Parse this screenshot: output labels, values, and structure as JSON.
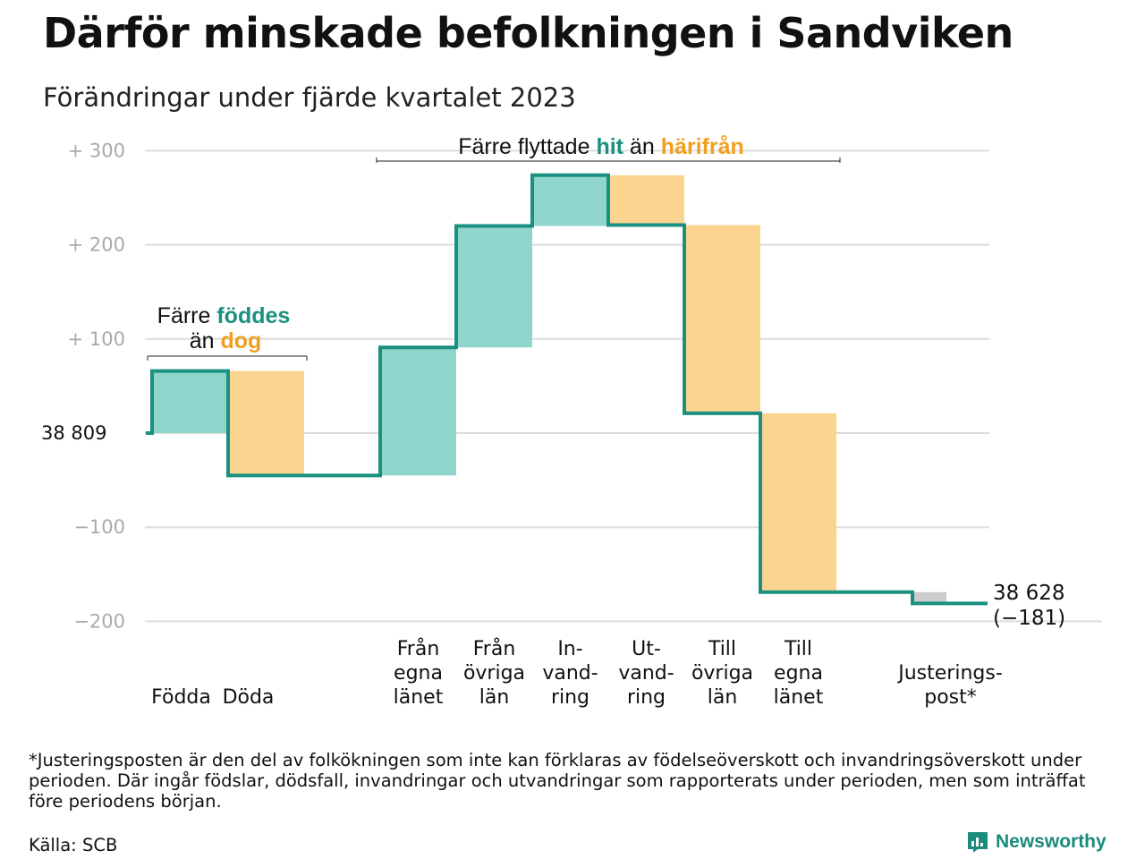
{
  "title": "Därför minskade befolkningen i Sandviken",
  "subtitle": "Förändringar under fjärde kvartalet 2023",
  "chart_data": {
    "type": "waterfall",
    "baseline_label": "38  809",
    "end_label_line1": "38 628",
    "end_label_line2": "(−181)",
    "ylim": [
      -200,
      300
    ],
    "yticks": [
      {
        "value": 300,
        "label": "+  300"
      },
      {
        "value": 200,
        "label": "+  200"
      },
      {
        "value": 100,
        "label": "+  100"
      },
      {
        "value": 0,
        "label": ""
      },
      {
        "value": -100,
        "label": "−100"
      },
      {
        "value": -200,
        "label": "−200"
      }
    ],
    "steps": [
      {
        "label": [
          "Födda"
        ],
        "from": 0,
        "to": 66,
        "kind": "in"
      },
      {
        "label": [
          "Döda"
        ],
        "from": 66,
        "to": -45,
        "kind": "out"
      },
      {
        "label": [
          "Från",
          "egna",
          "länet"
        ],
        "from": -45,
        "to": 91,
        "kind": "in"
      },
      {
        "label": [
          "Från",
          "övriga",
          "län"
        ],
        "from": 91,
        "to": 220,
        "kind": "in"
      },
      {
        "label": [
          "In-",
          "vand-",
          "ring"
        ],
        "from": 220,
        "to": 274,
        "kind": "in"
      },
      {
        "label": [
          "Ut-",
          "vand-",
          "ring"
        ],
        "from": 274,
        "to": 221,
        "kind": "out"
      },
      {
        "label": [
          "Till",
          "övriga",
          "län"
        ],
        "from": 221,
        "to": 21,
        "kind": "out"
      },
      {
        "label": [
          "Till",
          "egna",
          "länet"
        ],
        "from": 21,
        "to": -169,
        "kind": "out"
      },
      {
        "label": [
          "Justerings-",
          "post*"
        ],
        "from": -169,
        "to": -181,
        "kind": "adjust"
      }
    ],
    "annotations": {
      "births": {
        "line1_prefix": "Färre ",
        "line1_emph": "föddes",
        "line2_prefix": "än ",
        "line2_emph": "dog"
      },
      "moves": {
        "prefix": "Färre flyttade ",
        "emph1": "hit",
        "middle": " än ",
        "emph2": "härifrån"
      }
    },
    "colors": {
      "in": "#8fd5cc",
      "out": "#fbd590",
      "adjust": "#cccccc",
      "line": "#1a9080",
      "teal_text": "#1a9080",
      "orange_text": "#f0a020",
      "grid": "#dddddd",
      "tick_text": "#aaaaaa"
    }
  },
  "footnote": "*Justeringsposten är den del av folkökningen som inte kan förklaras av födelseöverskott och invandringsöverskott under perioden. Där ingår födslar, dödsfall, invandringar och utvandringar som rapporterats under perioden, men som inträffat före periodens början.",
  "source": "Källa: SCB",
  "brand": {
    "name": "Newsworthy",
    "icon": "newsworthy-logo-icon"
  }
}
